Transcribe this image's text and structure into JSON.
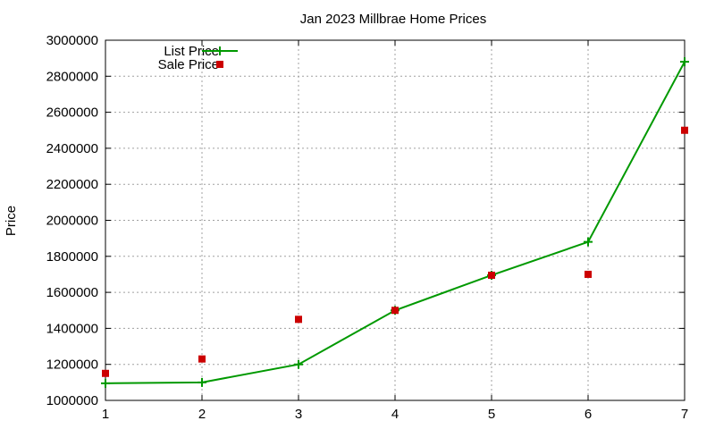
{
  "chart_data": {
    "type": "line",
    "title": "Jan 2023 Millbrae Home Prices",
    "xlabel": "",
    "ylabel": "Price",
    "x": [
      1,
      2,
      3,
      4,
      5,
      6,
      7
    ],
    "xlim": [
      1,
      7
    ],
    "ylim": [
      1000000,
      3000000
    ],
    "yticks": [
      1000000,
      1200000,
      1400000,
      1600000,
      1800000,
      2000000,
      2200000,
      2400000,
      2600000,
      2800000,
      3000000
    ],
    "xticks": [
      1,
      2,
      3,
      4,
      5,
      6,
      7
    ],
    "grid": true,
    "legend_position": "top-left",
    "series": [
      {
        "name": "List Price",
        "style": "line-with-plus-markers",
        "color": "#009900",
        "values": [
          1095000,
          1100000,
          1200000,
          1500000,
          1695000,
          1880000,
          2880000
        ]
      },
      {
        "name": "Sale Price",
        "style": "square-markers",
        "color": "#cc0000",
        "values": [
          1150000,
          1230000,
          1450000,
          1500000,
          1695000,
          1700000,
          2500000
        ]
      }
    ]
  }
}
